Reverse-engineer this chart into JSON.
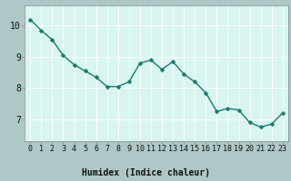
{
  "x": [
    0,
    1,
    2,
    3,
    4,
    5,
    6,
    7,
    8,
    9,
    10,
    11,
    12,
    13,
    14,
    15,
    16,
    17,
    18,
    19,
    20,
    21,
    22,
    23
  ],
  "y": [
    10.2,
    9.85,
    9.55,
    9.05,
    8.75,
    8.55,
    8.35,
    8.05,
    8.05,
    8.2,
    8.8,
    8.9,
    8.6,
    8.85,
    8.45,
    8.2,
    7.85,
    7.25,
    7.35,
    7.3,
    6.9,
    6.75,
    6.85,
    7.2
  ],
  "line_color": "#1a7a6e",
  "marker": "D",
  "marker_size": 2.5,
  "linewidth": 1.0,
  "plot_bg_color": "#d8f5f0",
  "fig_bg_color": "#aec8c8",
  "grid_color": "#ffffff",
  "xlabel": "Humidex (Indice chaleur)",
  "xtick_labels": [
    "0",
    "1",
    "2",
    "3",
    "4",
    "5",
    "6",
    "7",
    "8",
    "9",
    "10",
    "11",
    "12",
    "13",
    "14",
    "15",
    "16",
    "17",
    "18",
    "19",
    "20",
    "21",
    "22",
    "23"
  ],
  "ytick_labels": [
    "7",
    "8",
    "9",
    "10"
  ],
  "yticks": [
    7,
    8,
    9,
    10
  ],
  "ylim": [
    6.3,
    10.65
  ],
  "xlim": [
    -0.5,
    23.5
  ],
  "xlabel_fontsize": 7,
  "tick_fontsize": 6,
  "spine_color": "#888888"
}
